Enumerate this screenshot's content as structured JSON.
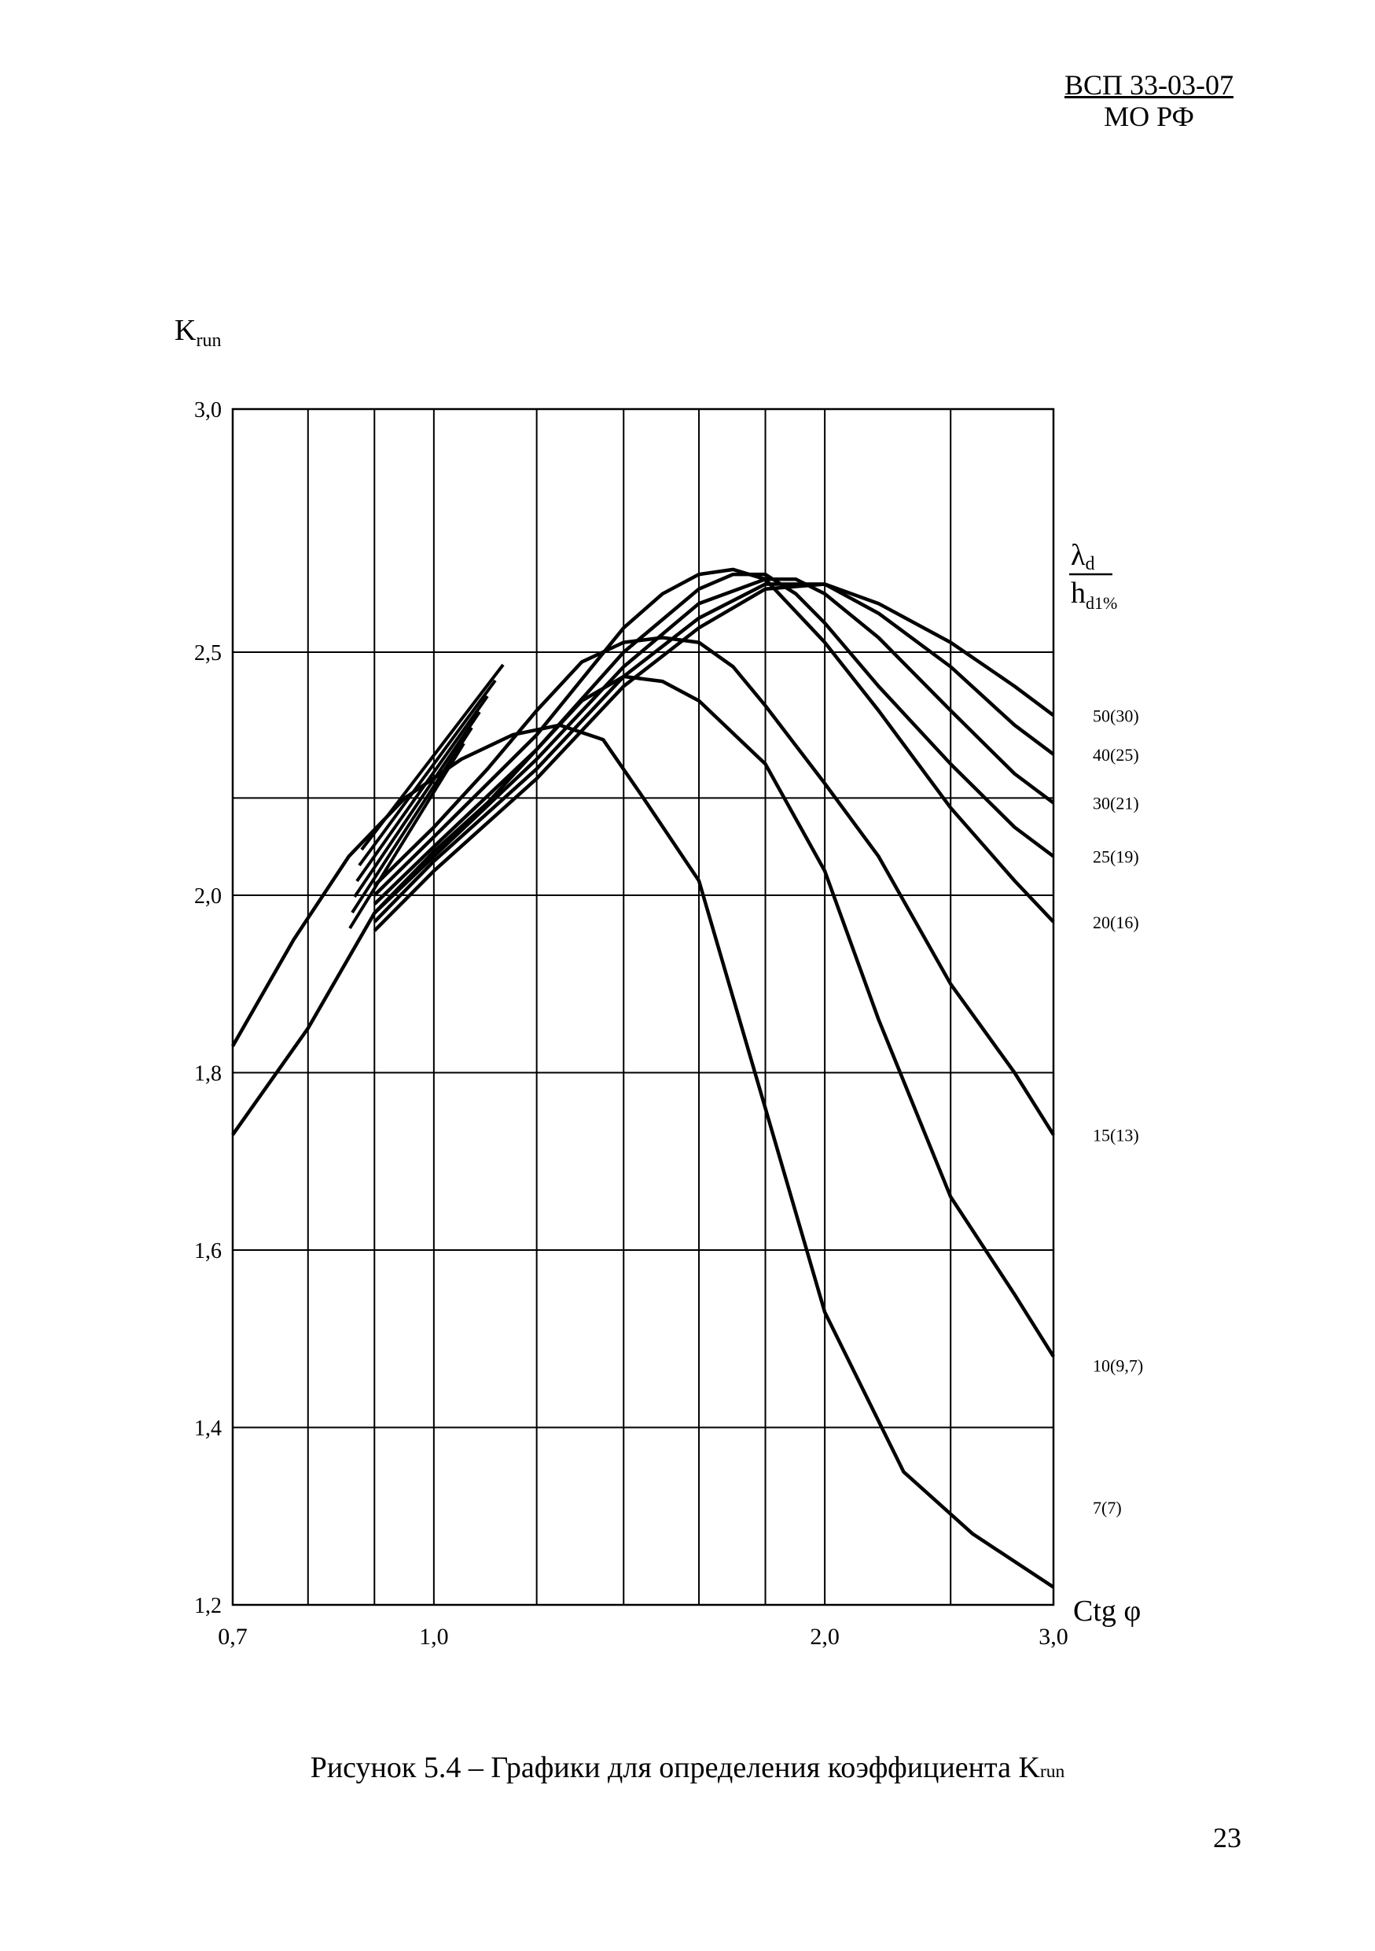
{
  "header": {
    "standard": "ВСП 33-03-07",
    "org": "МО РФ"
  },
  "caption": {
    "text": "Рисунок 5.4 – Графики для определения коэффициента K",
    "sub": "run"
  },
  "page_number": "23",
  "chart_data": {
    "type": "line",
    "ylabel": "K",
    "ylabel_sub": "run",
    "xlabel": "Ctg φ",
    "x_scale": "log",
    "xlim": [
      0.7,
      3.0
    ],
    "ylim": [
      1.2,
      3.0
    ],
    "x_ticks": [
      {
        "value": 0.7,
        "label": "0,7"
      },
      {
        "value": 1.0,
        "label": "1,0"
      },
      {
        "value": 2.0,
        "label": "2,0"
      },
      {
        "value": 3.0,
        "label": "3,0"
      }
    ],
    "y_ticks": [
      {
        "value": 1.2,
        "label": "1,2"
      },
      {
        "value": 1.4,
        "label": "1,4"
      },
      {
        "value": 1.6,
        "label": "1,6"
      },
      {
        "value": 1.8,
        "label": "1,8"
      },
      {
        "value": 2.0,
        "label": "2,0"
      },
      {
        "value": 2.5,
        "label": "2,5"
      },
      {
        "value": 3.0,
        "label": "3,0"
      }
    ],
    "grid": true,
    "legend_title": {
      "num": "λ",
      "num_sub": "d",
      "den": "h",
      "den_sub": "d1%"
    },
    "series": [
      {
        "name": "7(7)",
        "label_y": 1.31,
        "x": [
          0.7,
          0.78,
          0.86,
          0.95,
          1.05,
          1.15,
          1.25,
          1.35,
          1.45,
          1.6,
          1.8,
          2.0,
          2.3,
          2.6,
          3.0
        ],
        "y": [
          1.83,
          1.95,
          2.08,
          2.2,
          2.28,
          2.33,
          2.35,
          2.32,
          2.2,
          2.03,
          1.76,
          1.53,
          1.35,
          1.28,
          1.22
        ]
      },
      {
        "name": "10(9,7)",
        "label_y": 1.47,
        "x": [
          0.7,
          0.8,
          0.9,
          1.0,
          1.1,
          1.2,
          1.3,
          1.4,
          1.5,
          1.6,
          1.8,
          2.0,
          2.2,
          2.5,
          2.8,
          3.0
        ],
        "y": [
          1.73,
          1.85,
          1.98,
          2.09,
          2.19,
          2.3,
          2.4,
          2.45,
          2.44,
          2.4,
          2.27,
          2.05,
          1.86,
          1.66,
          1.55,
          1.48
        ]
      },
      {
        "name": "15(13)",
        "label_y": 1.73,
        "x": [
          0.9,
          1.0,
          1.1,
          1.2,
          1.3,
          1.4,
          1.5,
          1.6,
          1.7,
          1.8,
          2.0,
          2.2,
          2.5,
          2.8,
          3.0
        ],
        "y": [
          2.02,
          2.14,
          2.26,
          2.38,
          2.48,
          2.52,
          2.53,
          2.52,
          2.47,
          2.39,
          2.23,
          2.08,
          1.9,
          1.8,
          1.73
        ]
      },
      {
        "name": "20(16)",
        "label_y": 1.97,
        "x": [
          0.9,
          1.0,
          1.2,
          1.4,
          1.5,
          1.6,
          1.7,
          1.8,
          2.0,
          2.2,
          2.5,
          2.8,
          3.0
        ],
        "y": [
          2.0,
          2.12,
          2.33,
          2.55,
          2.62,
          2.66,
          2.67,
          2.65,
          2.52,
          2.38,
          2.18,
          2.03,
          1.97
        ]
      },
      {
        "name": "25(19)",
        "label_y": 2.08,
        "x": [
          0.9,
          1.0,
          1.2,
          1.4,
          1.6,
          1.7,
          1.8,
          1.9,
          2.0,
          2.2,
          2.5,
          2.8,
          3.0
        ],
        "y": [
          1.99,
          2.1,
          2.3,
          2.5,
          2.63,
          2.66,
          2.66,
          2.62,
          2.56,
          2.43,
          2.27,
          2.14,
          2.08
        ]
      },
      {
        "name": "30(21)",
        "label_y": 2.19,
        "x": [
          0.9,
          1.0,
          1.2,
          1.4,
          1.6,
          1.8,
          1.9,
          2.0,
          2.2,
          2.5,
          2.8,
          3.0
        ],
        "y": [
          1.98,
          2.08,
          2.28,
          2.47,
          2.6,
          2.65,
          2.65,
          2.62,
          2.53,
          2.38,
          2.25,
          2.19
        ]
      },
      {
        "name": "40(25)",
        "label_y": 2.29,
        "x": [
          0.9,
          1.0,
          1.2,
          1.4,
          1.6,
          1.8,
          2.0,
          2.2,
          2.5,
          2.8,
          3.0
        ],
        "y": [
          1.97,
          2.07,
          2.26,
          2.45,
          2.57,
          2.64,
          2.64,
          2.58,
          2.47,
          2.35,
          2.29
        ]
      },
      {
        "name": "50(30)",
        "label_y": 2.37,
        "x": [
          0.9,
          1.0,
          1.2,
          1.4,
          1.6,
          1.8,
          2.0,
          2.2,
          2.5,
          2.8,
          3.0
        ],
        "y": [
          1.96,
          2.05,
          2.24,
          2.43,
          2.55,
          2.63,
          2.64,
          2.6,
          2.52,
          2.43,
          2.37
        ]
      }
    ]
  }
}
